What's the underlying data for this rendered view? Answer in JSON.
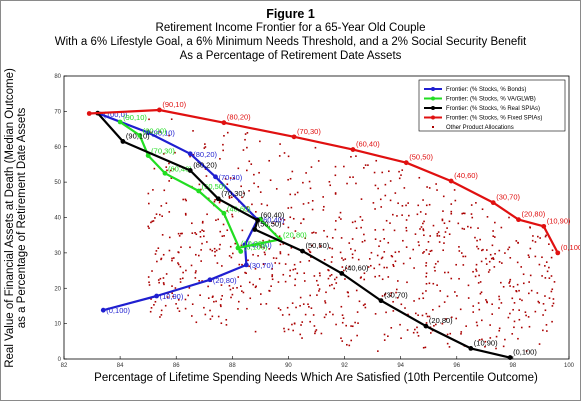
{
  "chart_data": {
    "type": "line",
    "title": "Figure 1",
    "subtitle_lines": [
      "Retirement Income Frontier for a 65-Year Old Couple",
      "With a 6% Lifestyle Goal, a 6% Minimum Needs Threshold, and a 2% Social Security Benefit",
      "As a Percentage of Retirement Date Assets"
    ],
    "xlabel": "Percentage of Lifetime Spending Needs Which Are Satisfied (10th Percentile Outcome)",
    "ylabel_lines": [
      "Real Value of Financial Assets at Death (Median Outcome)",
      "as a Percentage of Retirement Date Assets"
    ],
    "xlim": [
      82,
      100
    ],
    "ylim": [
      0,
      80
    ],
    "xticks": [
      "82",
      "84",
      "86",
      "88",
      "90",
      "92",
      "94",
      "96",
      "98",
      "100"
    ],
    "yticks": [
      "0",
      "10",
      "20",
      "30",
      "40",
      "50",
      "60",
      "70",
      "80"
    ],
    "grid": false,
    "legend_position": "top-right",
    "series": [
      {
        "name": "Frontier: (% Stocks, % Bonds)",
        "color": "#1f1fd0",
        "points": [
          {
            "x": 83.4,
            "y": 13.8,
            "label": "(0,100)"
          },
          {
            "x": 85.3,
            "y": 17.8,
            "label": "(10,90)"
          },
          {
            "x": 87.2,
            "y": 22.4,
            "label": "(20,80)"
          },
          {
            "x": 88.5,
            "y": 26.6,
            "label": "(30,70)"
          },
          {
            "x": 88.45,
            "y": 32.3,
            "label": "(40,60)"
          },
          {
            "x": 88.9,
            "y": 39.4,
            "label": "(60,40)"
          },
          {
            "x": 87.4,
            "y": 51.5,
            "label": "(70,30)"
          },
          {
            "x": 86.5,
            "y": 58.0,
            "label": "(80,20)"
          },
          {
            "x": 85.0,
            "y": 64.0,
            "label": "(90,10)"
          },
          {
            "x": 83.3,
            "y": 69.2,
            "label": "(100,0)"
          }
        ]
      },
      {
        "name": "Frontier: (% Stocks, % VA/GLWB)",
        "color": "#22dd22",
        "points": [
          {
            "x": 89.0,
            "y": 39.5,
            "label": ""
          },
          {
            "x": 89.7,
            "y": 33.8,
            "label": "(20,80)"
          },
          {
            "x": 88.2,
            "y": 31.4,
            "label": "(10,90)"
          },
          {
            "x": 88.3,
            "y": 30.4,
            "label": "(0,100)"
          },
          {
            "x": 87.7,
            "y": 41.2,
            "label": "(40,60)"
          },
          {
            "x": 86.8,
            "y": 47.5,
            "label": "(50,50)"
          },
          {
            "x": 85.6,
            "y": 52.5,
            "label": "(60,40)"
          },
          {
            "x": 85.0,
            "y": 57.5,
            "label": "(70,30)"
          },
          {
            "x": 84.7,
            "y": 63.2,
            "label": "(80,20)"
          },
          {
            "x": 84.0,
            "y": 67.0,
            "label": "(90,10)"
          }
        ]
      },
      {
        "name": "Frontier: (% Stocks, % Real SPIAs)",
        "color": "#000000",
        "points": [
          {
            "x": 83.2,
            "y": 69.5,
            "label": ""
          },
          {
            "x": 84.1,
            "y": 61.5,
            "label": "(90,10)"
          },
          {
            "x": 86.5,
            "y": 53.3,
            "label": "(80,20)"
          },
          {
            "x": 87.5,
            "y": 45.3,
            "label": "(70,30)"
          },
          {
            "x": 88.9,
            "y": 39.2,
            "label": "(60,40)"
          },
          {
            "x": 88.8,
            "y": 36.6,
            "label": "(50,50)"
          },
          {
            "x": 90.5,
            "y": 30.5,
            "label": "(50,50)"
          },
          {
            "x": 91.9,
            "y": 24.2,
            "label": "(40,60)"
          },
          {
            "x": 93.3,
            "y": 16.5,
            "label": "(30,70)"
          },
          {
            "x": 94.9,
            "y": 9.3,
            "label": "(20,80)"
          },
          {
            "x": 96.5,
            "y": 3.0,
            "label": "(10,90)"
          },
          {
            "x": 97.9,
            "y": 0.4,
            "label": "(0,100)"
          }
        ]
      },
      {
        "name": "Frontier: (% Stocks, % Fixed SPIAs)",
        "color": "#e01010",
        "points": [
          {
            "x": 82.9,
            "y": 69.4,
            "label": ""
          },
          {
            "x": 85.4,
            "y": 70.4,
            "label": "(90,10)"
          },
          {
            "x": 87.7,
            "y": 66.8,
            "label": "(80,20)"
          },
          {
            "x": 90.2,
            "y": 62.8,
            "label": "(70,30)"
          },
          {
            "x": 92.3,
            "y": 59.2,
            "label": "(60,40)"
          },
          {
            "x": 94.2,
            "y": 55.5,
            "label": "(50,50)"
          },
          {
            "x": 95.8,
            "y": 50.3,
            "label": "(40,60)"
          },
          {
            "x": 97.3,
            "y": 44.2,
            "label": "(30,70)"
          },
          {
            "x": 98.2,
            "y": 39.4,
            "label": "(20,80)"
          },
          {
            "x": 99.1,
            "y": 37.5,
            "label": "(10,90)"
          },
          {
            "x": 99.6,
            "y": 30.0,
            "label": "(0,100)"
          }
        ]
      },
      {
        "name": "Other Product Allocations",
        "color": "#aa0000",
        "points": []
      }
    ]
  }
}
